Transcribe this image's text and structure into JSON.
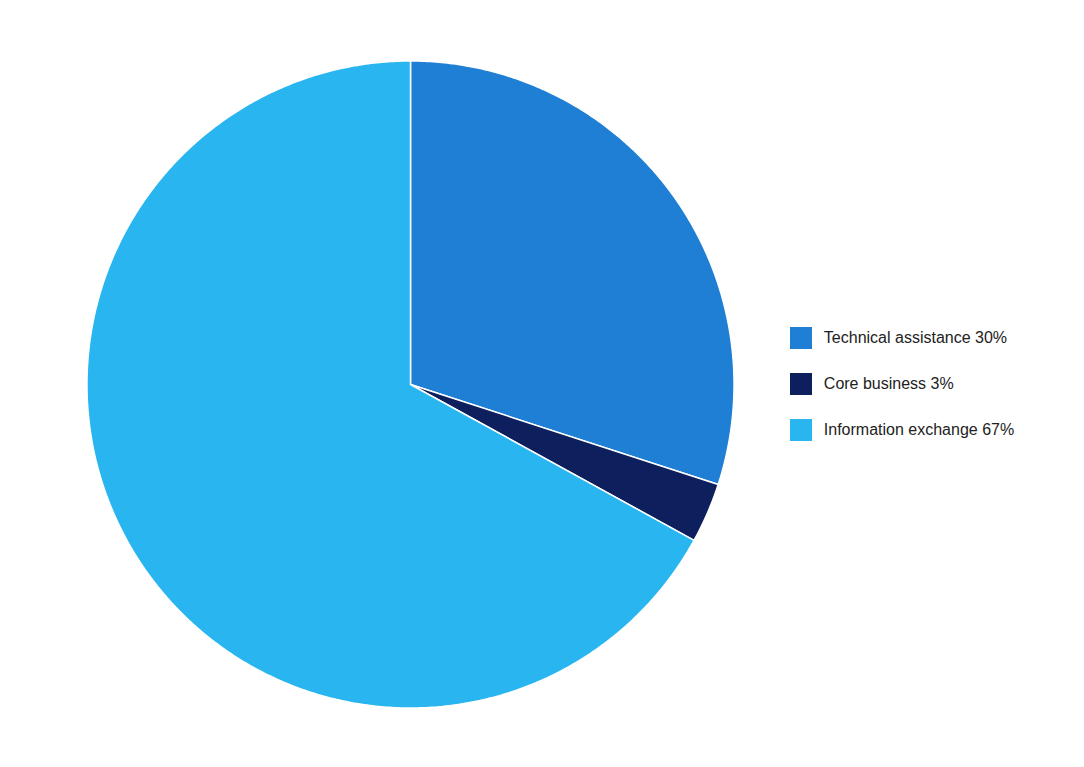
{
  "chart_data": {
    "type": "pie",
    "categories": [
      "Technical assistance 30%",
      "Core business 3%",
      "Information exchange 67%"
    ],
    "values": [
      30,
      3,
      67
    ],
    "colors": [
      "#1e7fd4",
      "#0d1f5c",
      "#29b6f0"
    ],
    "legend": "right"
  }
}
